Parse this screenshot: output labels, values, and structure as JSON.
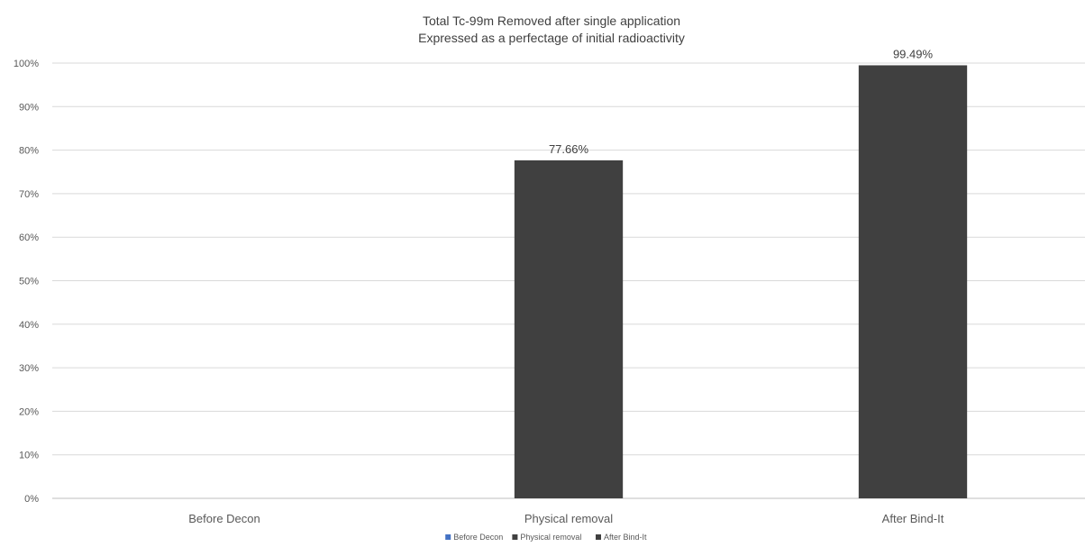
{
  "chart_data": {
    "type": "bar",
    "title": "Total Tc-99m Removed after single application",
    "subtitle": "Expressed as a perfectage of initial radioactivity",
    "categories": [
      "Before Decon",
      "Physical removal",
      "After Bind-It"
    ],
    "values": [
      0,
      77.66,
      99.49
    ],
    "data_labels": [
      "",
      "77.66%",
      "99.49%"
    ],
    "ylim": [
      0,
      100
    ],
    "ytick_values": [
      0,
      10,
      20,
      30,
      40,
      50,
      60,
      70,
      80,
      90,
      100
    ],
    "ytick_labels": [
      "0%",
      "10%",
      "20%",
      "30%",
      "40%",
      "50%",
      "60%",
      "70%",
      "80%",
      "90%",
      "100%"
    ],
    "grid": true,
    "legend_position": "bottom",
    "legend": [
      {
        "name": "Before Decon",
        "color": "#4472c4"
      },
      {
        "name": "Physical removal",
        "color": "#404040"
      },
      {
        "name": "After Bind-It",
        "color": "#404040"
      }
    ],
    "bar_colors": [
      "#4472c4",
      "#404040",
      "#404040"
    ]
  }
}
